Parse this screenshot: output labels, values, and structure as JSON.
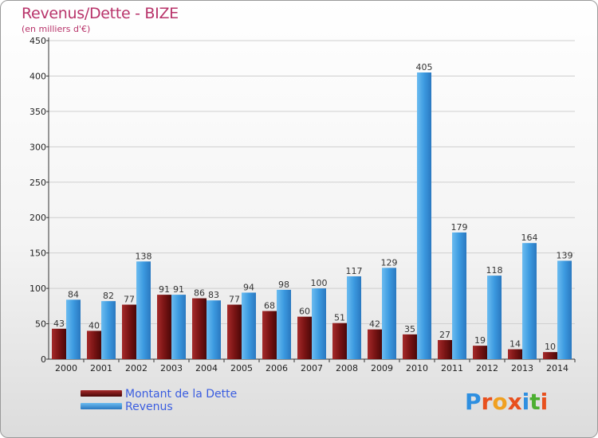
{
  "title": "Revenus/Dette - BIZE",
  "subtitle": "(en milliers d'€)",
  "colors": {
    "dette": "#7a1414",
    "revenus": "#3c9ae0",
    "title": "#b8336a",
    "legend_text": "#3a5de0"
  },
  "legend": [
    {
      "label": "Montant de la Dette",
      "series": "dette"
    },
    {
      "label": "Revenus",
      "series": "revenus"
    }
  ],
  "logo": {
    "text": "Proxiti"
  },
  "chart_data": {
    "type": "bar",
    "title": "Revenus/Dette - BIZE",
    "subtitle": "(en milliers d'€)",
    "categories": [
      "2000",
      "2001",
      "2002",
      "2003",
      "2004",
      "2005",
      "2006",
      "2007",
      "2008",
      "2009",
      "2010",
      "2011",
      "2012",
      "2013",
      "2014"
    ],
    "series": [
      {
        "name": "Montant de la Dette",
        "values": [
          43,
          40,
          77,
          91,
          86,
          77,
          68,
          60,
          51,
          42,
          35,
          27,
          19,
          14,
          10
        ]
      },
      {
        "name": "Revenus",
        "values": [
          84,
          82,
          138,
          91,
          83,
          94,
          98,
          100,
          117,
          129,
          405,
          179,
          118,
          164,
          139
        ]
      }
    ],
    "ylim": [
      0,
      450
    ],
    "yticks": [
      0,
      50,
      100,
      150,
      200,
      250,
      300,
      350,
      400,
      450
    ],
    "grid": true,
    "legend_position": "bottom-left"
  }
}
